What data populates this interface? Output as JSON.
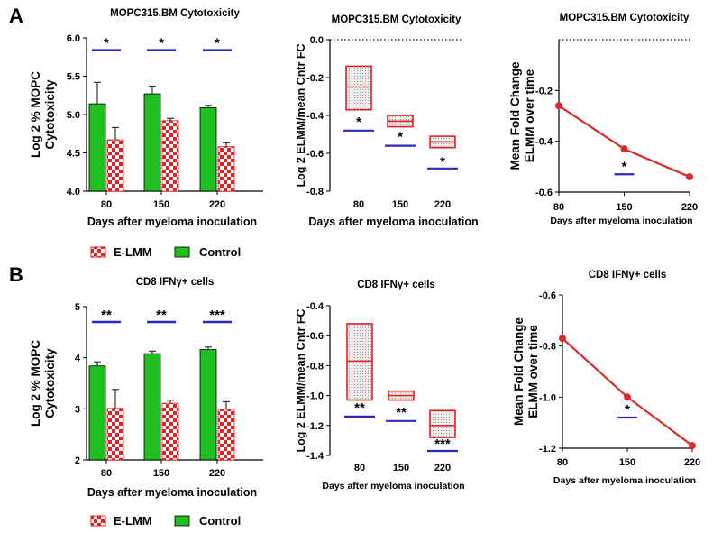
{
  "panels": {
    "a": "A",
    "b": "B"
  },
  "colors": {
    "control": "#1fbf1f",
    "elmm": "#e12323",
    "sig": "#2b2bb8",
    "line": "#d92b2b",
    "box_fill": "#e8e8e8"
  },
  "legend": {
    "elmm": "E-LMM",
    "control": "Control"
  },
  "chart_data": [
    {
      "id": "a1",
      "type": "bar",
      "title": "MOPC315.BM Cytotoxicity",
      "xlabel": "Days after myeloma inoculation",
      "ylabel_lines": [
        "Log 2  % MOPC",
        "Cytotoxicity"
      ],
      "categories": [
        "80",
        "150",
        "220"
      ],
      "ylim": [
        4.0,
        6.0
      ],
      "yticks": [
        "4.0",
        "4.5",
        "5.0",
        "5.5",
        "6.0"
      ],
      "series": [
        {
          "name": "Control",
          "values": [
            5.14,
            5.27,
            5.09
          ],
          "errors": [
            0.28,
            0.1,
            0.03
          ]
        },
        {
          "name": "E-LMM",
          "values": [
            4.67,
            4.92,
            4.58
          ],
          "errors": [
            0.16,
            0.03,
            0.05
          ]
        }
      ],
      "significance": [
        "*",
        "*",
        "*"
      ],
      "sig_level": 5.84
    },
    {
      "id": "a2",
      "type": "box",
      "title": "MOPC315.BM Cytotoxicity",
      "xlabel": "Days after myeloma inoculation",
      "ylabel": "Log 2 ELMM/mean Cntr FC",
      "categories": [
        "80",
        "150",
        "220"
      ],
      "ylim": [
        -0.8,
        0.0
      ],
      "yticks": [
        "0.0",
        "-0.2",
        "-0.4",
        "-0.6",
        "-0.8"
      ],
      "reference": 0.0,
      "boxes": [
        {
          "low": -0.37,
          "mid": -0.25,
          "high": -0.14
        },
        {
          "low": -0.46,
          "mid": -0.43,
          "high": -0.4
        },
        {
          "low": -0.57,
          "mid": -0.54,
          "high": -0.51
        }
      ],
      "significance": [
        "*",
        "*",
        "*"
      ],
      "sig_levels": [
        -0.48,
        -0.56,
        -0.68
      ]
    },
    {
      "id": "a3",
      "type": "line",
      "title": "MOPC315.BM Cytotoxicity",
      "xlabel": "Days after myeloma inoculation",
      "ylabel_lines": [
        "Mean Fold Change",
        "ELMM over time"
      ],
      "x": [
        80,
        150,
        220
      ],
      "y": [
        -0.26,
        -0.43,
        -0.54
      ],
      "xticks": [
        "80",
        "150",
        "220"
      ],
      "ylim": [
        -0.6,
        0.0
      ],
      "yticks": [
        "-0.2",
        "-0.4",
        "-0.6"
      ],
      "reference": 0.0,
      "significance": "*",
      "sig_at": 150,
      "sig_level": -0.53
    },
    {
      "id": "b1",
      "type": "bar",
      "title": "CD8 IFNγ+ cells",
      "xlabel": "Days after myeloma inoculation",
      "ylabel_lines": [
        "Log 2  % MOPC",
        "Cytotoxicity"
      ],
      "categories": [
        "80",
        "150",
        "220"
      ],
      "ylim": [
        2,
        5
      ],
      "yticks": [
        "2",
        "3",
        "4",
        "5"
      ],
      "series": [
        {
          "name": "Control",
          "values": [
            3.84,
            4.08,
            4.16
          ],
          "errors": [
            0.08,
            0.05,
            0.05
          ]
        },
        {
          "name": "E-LMM",
          "values": [
            3.01,
            3.11,
            2.99
          ],
          "errors": [
            0.37,
            0.06,
            0.15
          ]
        }
      ],
      "significance": [
        "**",
        "**",
        "***"
      ],
      "sig_level": 4.7
    },
    {
      "id": "b2",
      "type": "box",
      "title": "CD8  IFNγ+ cells",
      "xlabel": "Days after myeloma inoculation",
      "ylabel": "Log 2 ELMM/mean Cntr FC",
      "categories": [
        "80",
        "150",
        "220"
      ],
      "ylim": [
        -1.4,
        -0.4
      ],
      "yticks": [
        "-0.4",
        "-0.6",
        "-0.8",
        "-1.0",
        "-1.2",
        "-1.4"
      ],
      "boxes": [
        {
          "low": -1.03,
          "mid": -0.77,
          "high": -0.52
        },
        {
          "low": -1.03,
          "mid": -1.0,
          "high": -0.97
        },
        {
          "low": -1.28,
          "mid": -1.2,
          "high": -1.1
        }
      ],
      "significance": [
        "**",
        "**",
        "***"
      ],
      "sig_levels": [
        -1.14,
        -1.17,
        -1.37
      ]
    },
    {
      "id": "b3",
      "type": "line",
      "title": "CD8 IFNγ+ cells",
      "xlabel": "Days after myeloma inoculation",
      "ylabel_lines": [
        "Mean Fold Change",
        "ELMM over time"
      ],
      "x": [
        80,
        150,
        220
      ],
      "y": [
        -0.77,
        -1.0,
        -1.19
      ],
      "xticks": [
        "80",
        "150",
        "220"
      ],
      "ylim": [
        -1.2,
        -0.6
      ],
      "yticks": [
        "-0.6",
        "-0.8",
        "-1.0",
        "-1.2"
      ],
      "significance": "*",
      "sig_at": 150,
      "sig_level": -1.08
    }
  ]
}
